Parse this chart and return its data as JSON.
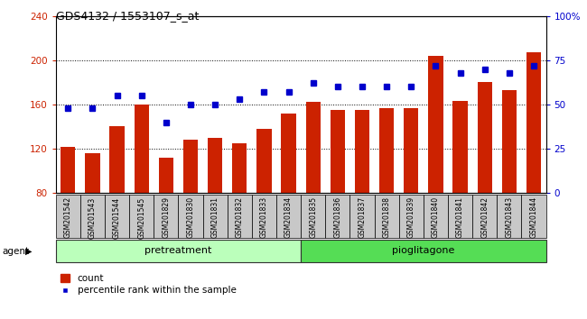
{
  "title": "GDS4132 / 1553107_s_at",
  "categories": [
    "GSM201542",
    "GSM201543",
    "GSM201544",
    "GSM201545",
    "GSM201829",
    "GSM201830",
    "GSM201831",
    "GSM201832",
    "GSM201833",
    "GSM201834",
    "GSM201835",
    "GSM201836",
    "GSM201837",
    "GSM201838",
    "GSM201839",
    "GSM201840",
    "GSM201841",
    "GSM201842",
    "GSM201843",
    "GSM201844"
  ],
  "bar_values": [
    122,
    116,
    140,
    160,
    112,
    128,
    130,
    125,
    138,
    152,
    162,
    155,
    155,
    157,
    157,
    204,
    163,
    180,
    173,
    207
  ],
  "dot_values": [
    48,
    48,
    55,
    55,
    40,
    50,
    50,
    53,
    57,
    57,
    62,
    60,
    60,
    60,
    60,
    72,
    68,
    70,
    68,
    72
  ],
  "bar_color": "#cc2200",
  "dot_color": "#0000cc",
  "ylim_left": [
    80,
    240
  ],
  "ylim_right": [
    0,
    100
  ],
  "yticks_left": [
    80,
    120,
    160,
    200,
    240
  ],
  "yticks_right": [
    0,
    25,
    50,
    75,
    100
  ],
  "yticklabels_right": [
    "0",
    "25",
    "50",
    "75",
    "100%"
  ],
  "pretreatment_count": 10,
  "pioglitagone_count": 10,
  "group1_label": "pretreatment",
  "group2_label": "pioglitagone",
  "legend_bar": "count",
  "legend_dot": "percentile rank within the sample",
  "agent_label": "agent",
  "bar_bottom": 80,
  "dotted_gridlines": [
    120,
    160,
    200
  ],
  "xtick_bg": "#c8c8c8",
  "bar_width": 0.6,
  "pretreatment_color": "#bbffbb",
  "pioglitagone_color": "#55dd55"
}
